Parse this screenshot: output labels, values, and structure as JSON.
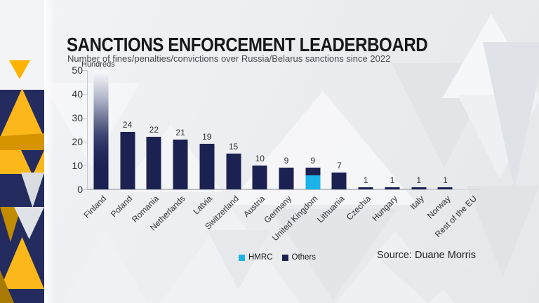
{
  "chart_data": {
    "type": "bar",
    "title": "SANCTIONS ENFORCEMENT LEADERBOARD",
    "subtitle": "Number of fines/penalties/convictions over Russia/Belarus sanctions since 2022",
    "unit_label": "Hundreds",
    "source": "Source: Duane Morris",
    "ylim": [
      0,
      50
    ],
    "yticks": [
      0,
      10,
      20,
      30,
      40,
      50
    ],
    "grid": false,
    "legend_position": "bottom",
    "categories": [
      "Finland",
      "Poland",
      "Romania",
      "Netherlands",
      "Latvia",
      "Switzerland",
      "Austria",
      "Germany",
      "United Kingdom",
      "Lithuania",
      "Czechia",
      "Hungary",
      "Italy",
      "Norway",
      "Rest of the EU"
    ],
    "series": [
      {
        "name": "HMRC",
        "color": "#1cb2ea",
        "values": [
          0,
          0,
          0,
          0,
          0,
          0,
          0,
          0,
          6,
          0,
          0,
          0,
          0,
          0,
          0
        ]
      },
      {
        "name": "Others",
        "color": "#1b2150",
        "values": [
          null,
          24,
          22,
          21,
          19,
          15,
          10,
          9,
          3,
          7,
          1,
          1,
          1,
          1,
          0
        ]
      }
    ],
    "bar_value_labels": [
      "",
      "24",
      "22",
      "21",
      "19",
      "15",
      "10",
      "9",
      "9",
      "7",
      "1",
      "1",
      "1",
      "1",
      ""
    ],
    "truncated_note": "Finland bar exceeds the axis maximum and fades out at the top; no value label shown"
  },
  "legend": {
    "items": [
      {
        "label": "HMRC",
        "color": "#1cb2ea"
      },
      {
        "label": "Others",
        "color": "#1b2150"
      }
    ]
  },
  "colors": {
    "bar_navy": "#1b2150",
    "bar_cyan": "#1cb2ea",
    "brand_yellow": "#fcb81a",
    "brand_gold": "#d69500",
    "brand_navy": "#242b5f",
    "background": "#eaecef",
    "axis_line": "#c5c8cd"
  }
}
